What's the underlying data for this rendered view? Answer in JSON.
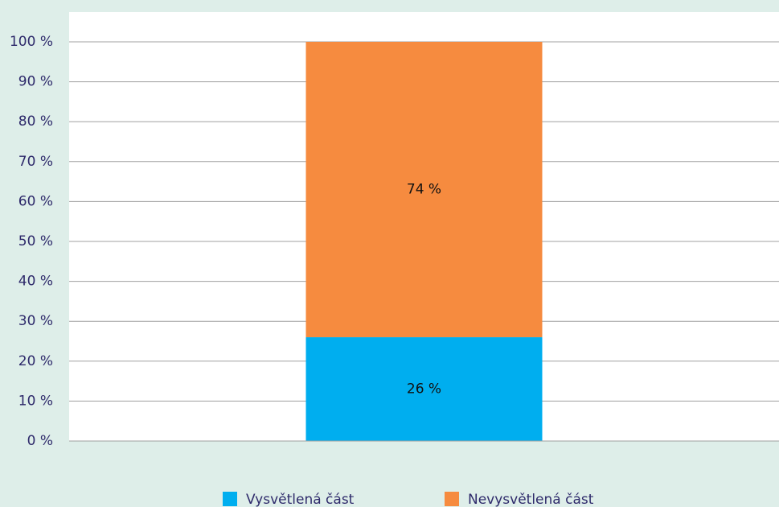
{
  "chart_data": {
    "type": "stacked_bar",
    "categories": [
      null
    ],
    "series": [
      {
        "name": "Vysvětlená část",
        "color": "#00aeef",
        "values": [
          26
        ],
        "value_labels": [
          "26 %"
        ]
      },
      {
        "name": "Nevysvětlená část",
        "color": "#f68b3f",
        "values": [
          74
        ],
        "value_labels": [
          "74 %"
        ]
      }
    ],
    "ylim": [
      0,
      100
    ],
    "yticks": [
      {
        "value": 0,
        "label": "0 %"
      },
      {
        "value": 10,
        "label": "10 %"
      },
      {
        "value": 20,
        "label": "20 %"
      },
      {
        "value": 30,
        "label": "30 %"
      },
      {
        "value": 40,
        "label": "40 %"
      },
      {
        "value": 50,
        "label": "50 %"
      },
      {
        "value": 60,
        "label": "60 %"
      },
      {
        "value": 70,
        "label": "70 %"
      },
      {
        "value": 80,
        "label": "80 %"
      },
      {
        "value": 90,
        "label": "90 %"
      },
      {
        "value": 100,
        "label": "100 %"
      }
    ],
    "grid": true,
    "legend": "bottom"
  }
}
